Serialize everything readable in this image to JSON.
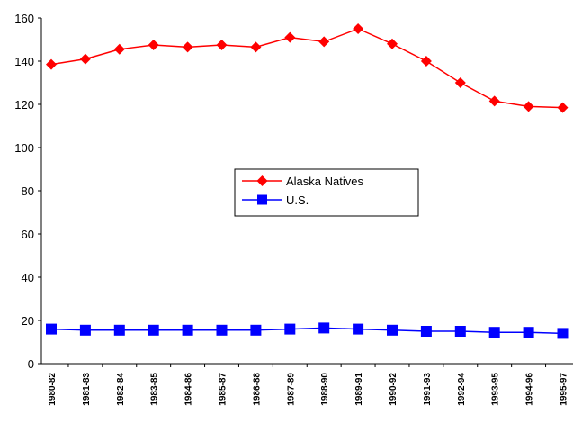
{
  "chart_data": {
    "type": "line",
    "categories": [
      "1980-82",
      "1981-83",
      "1982-84",
      "1983-85",
      "1984-86",
      "1985-87",
      "1986-88",
      "1987-89",
      "1988-90",
      "1989-91",
      "1990-92",
      "1991-93",
      "1992-94",
      "1993-95",
      "1994-96",
      "1995-97"
    ],
    "ylim": [
      0,
      160
    ],
    "yticks": [
      0,
      20,
      40,
      60,
      80,
      100,
      120,
      140,
      160
    ],
    "grid": false,
    "legend_position": "center",
    "series": [
      {
        "name": "Alaska Natives",
        "color": "#ff0000",
        "marker": "diamond",
        "values": [
          138.5,
          141,
          145.5,
          147.5,
          146.5,
          147.5,
          146.5,
          151,
          149,
          155,
          148,
          140,
          130,
          121.5,
          119,
          118.5
        ]
      },
      {
        "name": "U.S.",
        "color": "#0000ff",
        "marker": "square",
        "values": [
          16,
          15.5,
          15.5,
          15.5,
          15.5,
          15.5,
          15.5,
          16,
          16.5,
          16,
          15.5,
          15,
          15,
          14.5,
          14.5,
          14
        ]
      }
    ]
  }
}
